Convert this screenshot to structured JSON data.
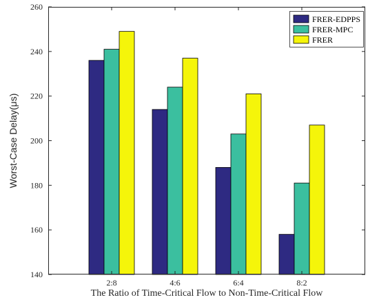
{
  "chart_data": {
    "type": "bar",
    "xlabel": "The Ratio of Time-Critical Flow to Non-Time-Critical Flow",
    "ylabel": "Worst-Case Delay(μs)",
    "categories": [
      "2:8",
      "4:6",
      "6:4",
      "8:2"
    ],
    "ylim": [
      140,
      260
    ],
    "yticks": [
      140,
      160,
      180,
      200,
      220,
      240,
      260
    ],
    "grid": false,
    "legend_position": "top-right",
    "series": [
      {
        "name": "FRER-EDPPS",
        "color": "#2e2a82",
        "values": [
          236,
          214,
          188,
          158
        ]
      },
      {
        "name": "FRER-MPC",
        "color": "#3bbf9f",
        "values": [
          241,
          224,
          203,
          181
        ]
      },
      {
        "name": "FRER",
        "color": "#f5f50a",
        "values": [
          249,
          237,
          221,
          207
        ]
      }
    ]
  }
}
